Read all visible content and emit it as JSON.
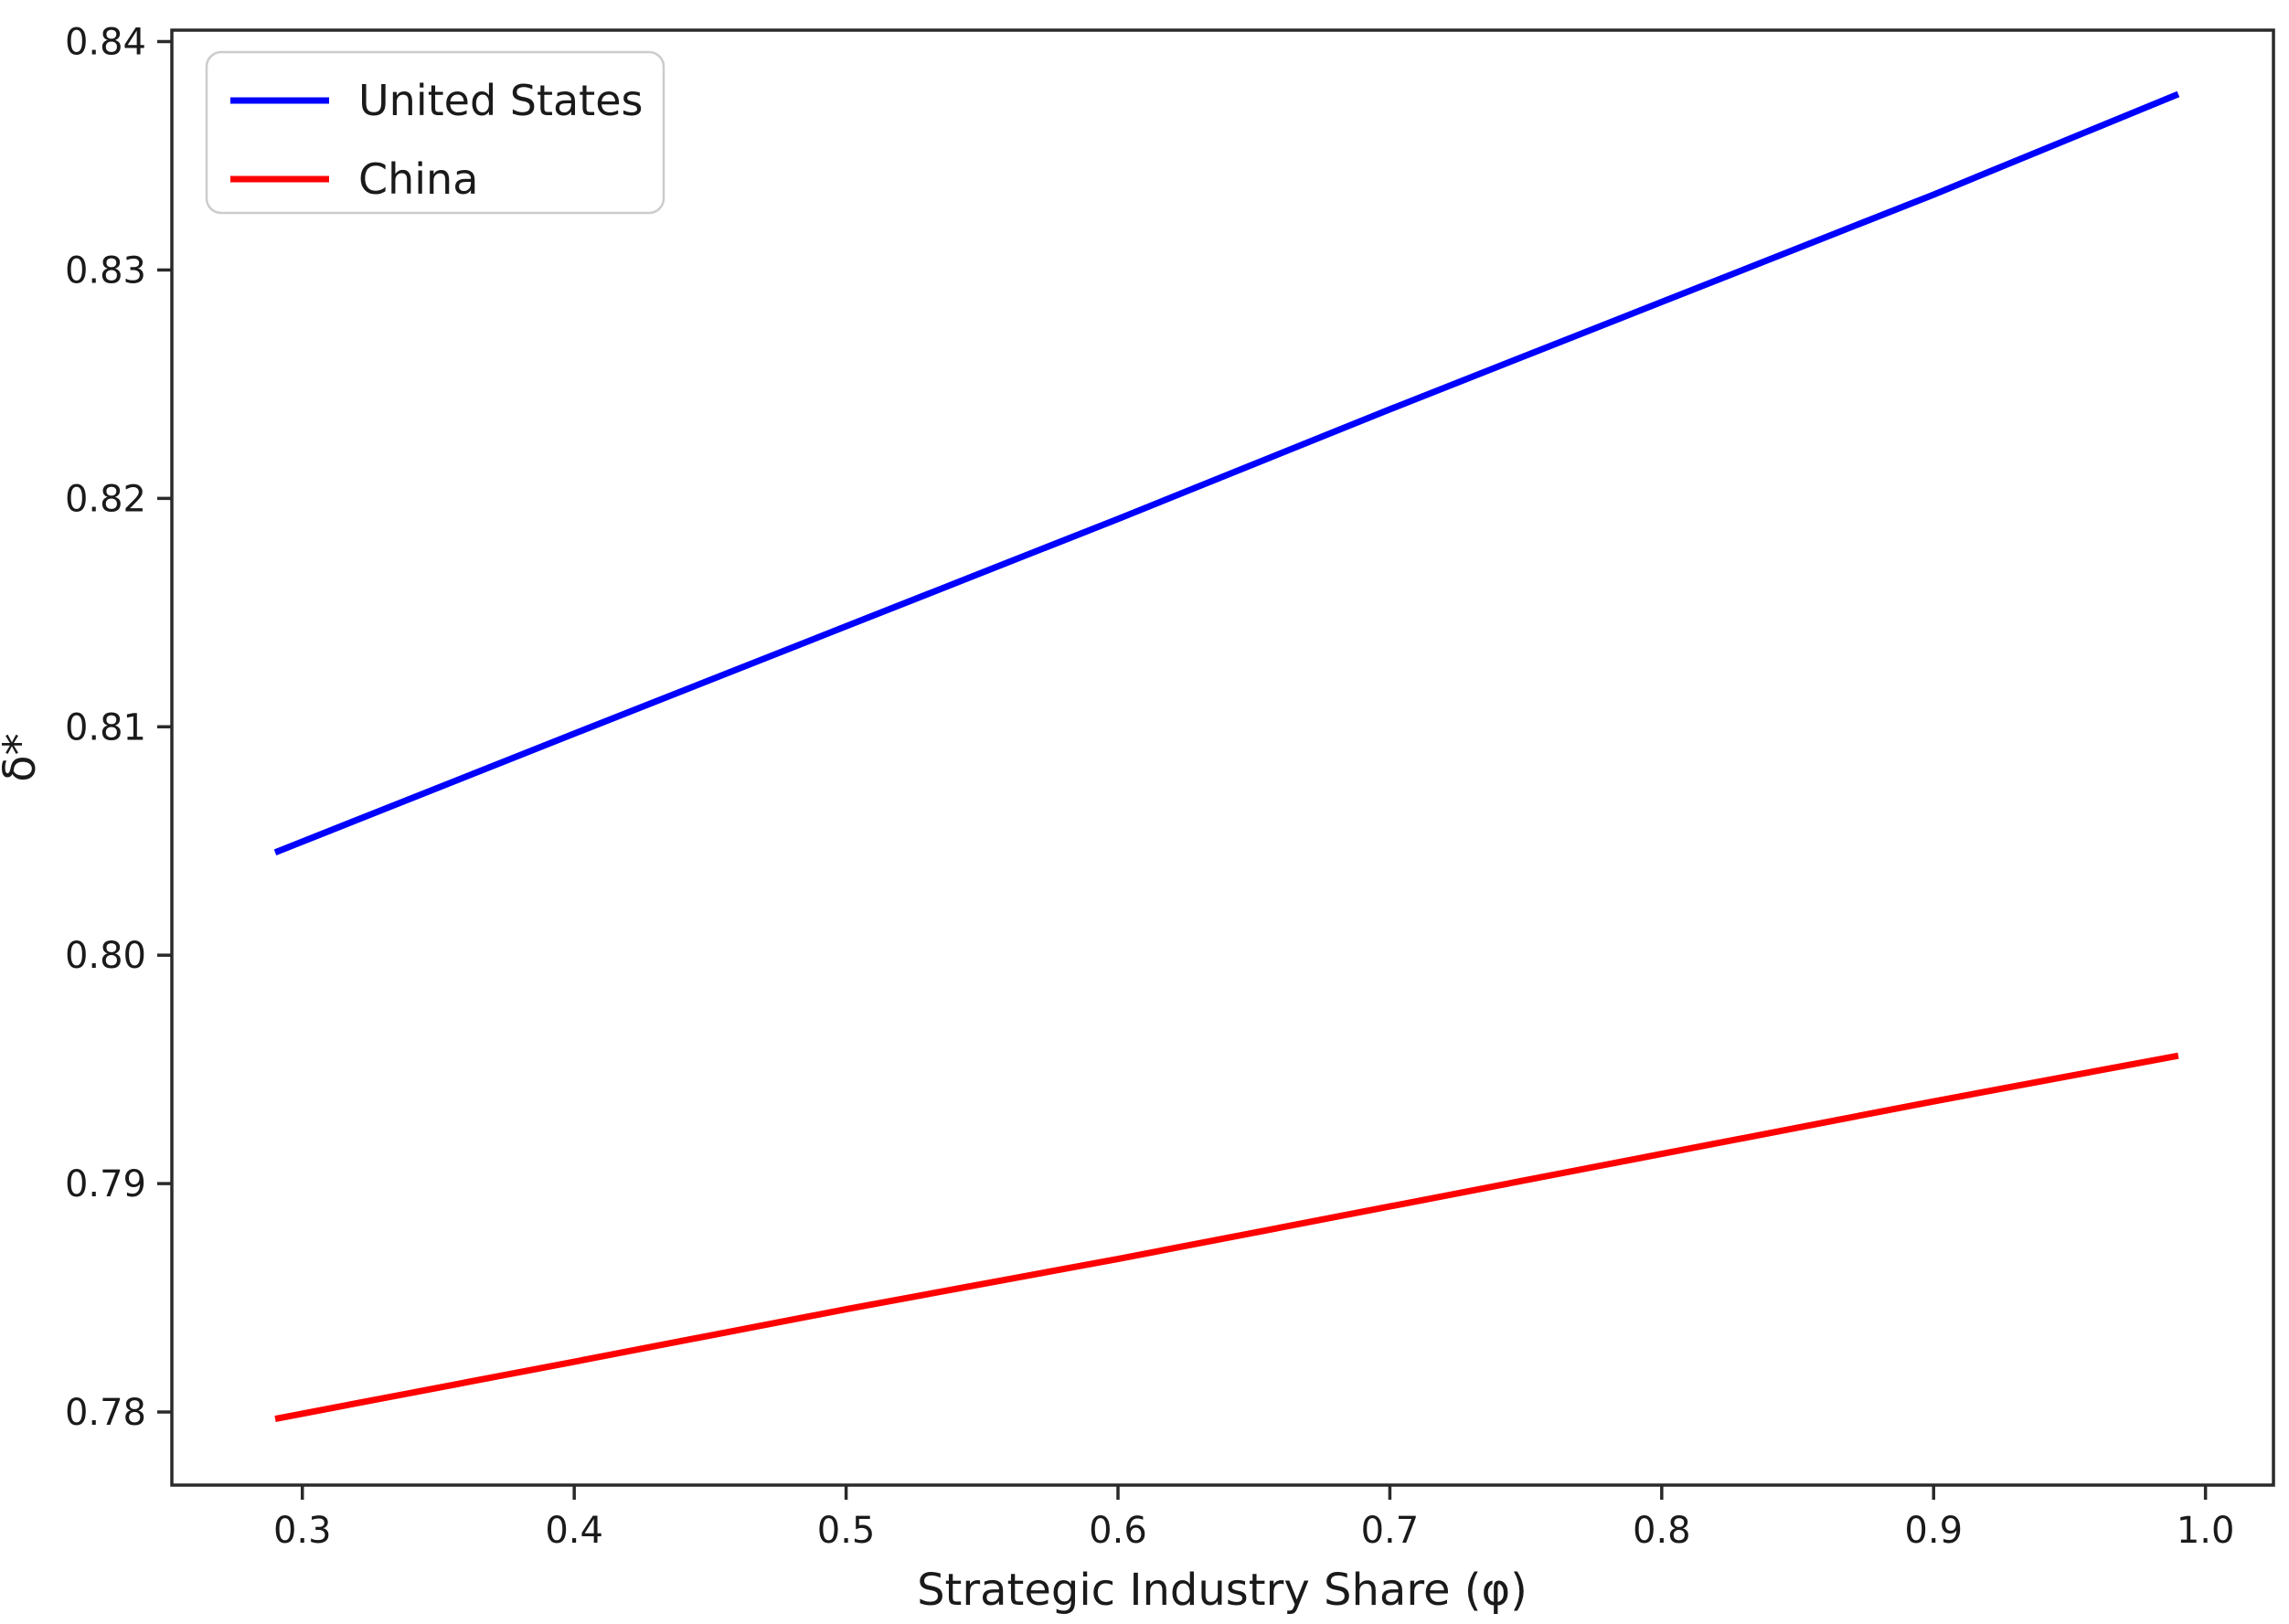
{
  "chart_data": {
    "type": "line",
    "title": "",
    "xlabel": "Strategic Industry Share (φ)",
    "ylabel": "δ*",
    "xlim": [
      0.252,
      1.025
    ],
    "ylim": [
      0.7768,
      0.8405
    ],
    "grid": false,
    "legend_position": "upper left",
    "x_ticks": {
      "values": [
        0.3,
        0.4,
        0.5,
        0.6,
        0.7,
        0.8,
        0.9,
        1.0
      ],
      "labels": [
        "0.3",
        "0.4",
        "0.5",
        "0.6",
        "0.7",
        "0.8",
        "0.9",
        "1.0"
      ]
    },
    "y_ticks": {
      "values": [
        0.78,
        0.79,
        0.8,
        0.81,
        0.82,
        0.83,
        0.84
      ],
      "labels": [
        "0.78",
        "0.79",
        "0.80",
        "0.81",
        "0.82",
        "0.83",
        "0.84"
      ]
    },
    "x": [
      0.29,
      0.4,
      0.5,
      0.6,
      0.7,
      0.8,
      0.9,
      0.99
    ],
    "series": [
      {
        "name": "United States",
        "color": "#0000ff",
        "values": [
          0.8045,
          0.8097,
          0.8144,
          0.8191,
          0.8239,
          0.8286,
          0.8333,
          0.8377
        ]
      },
      {
        "name": "China",
        "color": "#ff0000",
        "values": [
          0.7797,
          0.7822,
          0.7845,
          0.7867,
          0.789,
          0.7913,
          0.7936,
          0.7956
        ]
      }
    ]
  },
  "colors": {
    "background": "#ffffff",
    "axis": "#2a2a2a",
    "text": "#1a1a1a",
    "legend_border": "#cccccc",
    "united_states_line": "#0000ff",
    "china_line": "#ff0000"
  }
}
